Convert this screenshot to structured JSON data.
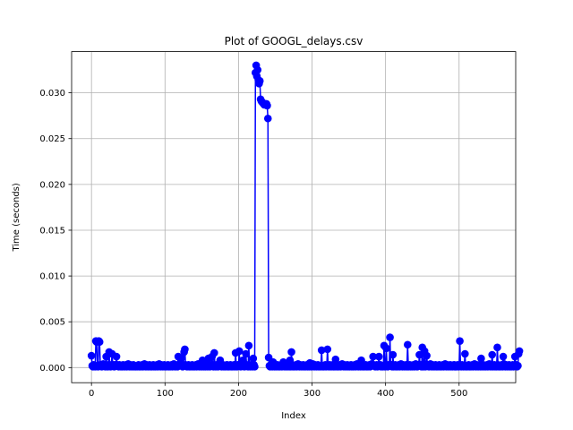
{
  "chart_data": {
    "type": "line",
    "title": "Plot of GOOGL_delays.csv",
    "xlabel": "Index",
    "ylabel": "Time (seconds)",
    "xlim": [
      -27,
      577
    ],
    "ylim": [
      -0.00165,
      0.0345
    ],
    "xticks": [
      0,
      100,
      200,
      300,
      400,
      500
    ],
    "xtick_labels": [
      "0",
      "100",
      "200",
      "300",
      "400",
      "500"
    ],
    "yticks": [
      0.0,
      0.005,
      0.01,
      0.015,
      0.02,
      0.025,
      0.03
    ],
    "ytick_labels": [
      "0.000",
      "0.005",
      "0.010",
      "0.015",
      "0.020",
      "0.025",
      "0.030"
    ],
    "grid": true,
    "series": [
      {
        "color": "#0000ff",
        "marker": "circle",
        "x_start": 0,
        "x_step": 1,
        "values": [
          0.0013,
          0.0002,
          0.0001,
          0.0003,
          0.0002,
          0.0001,
          0.0029,
          0.0028,
          0.0002,
          0.0001,
          0.0029,
          0.0028,
          0.0003,
          0.0002,
          0.0001,
          0.0002,
          0.0004,
          0.0003,
          0.0002,
          0.0001,
          0.0012,
          0.0002,
          0.0001,
          0.0003,
          0.0017,
          0.0002,
          0.0001,
          0.0003,
          0.0015,
          0.0003,
          0.0002,
          0.0001,
          0.0003,
          0.0002,
          0.0012,
          0.0003,
          0.0002,
          0.0001,
          0.0003,
          0.0002,
          0.0001,
          0.0002,
          0.0001,
          0.0003,
          0.0002,
          0.0001,
          0.0002,
          0.0003,
          0.0001,
          0.0002,
          0.0004,
          0.0002,
          0.0001,
          0.0003,
          0.0002,
          0.0001,
          0.0002,
          0.0003,
          0.0001,
          0.0002,
          0.0001,
          0.0002,
          0.0001,
          0.0002,
          0.0003,
          0.0001,
          0.0002,
          0.0001,
          0.0002,
          0.0003,
          0.0001,
          0.0002,
          0.0004,
          0.0002,
          0.0001,
          0.0003,
          0.0002,
          0.0001,
          0.0002,
          0.0003,
          0.0001,
          0.0002,
          0.0001,
          0.0002,
          0.0003,
          0.0001,
          0.0002,
          0.0001,
          0.0002,
          0.0003,
          0.0001,
          0.0002,
          0.0004,
          0.0002,
          0.0001,
          0.0003,
          0.0002,
          0.0001,
          0.0002,
          0.0003,
          0.0001,
          0.0002,
          0.0001,
          0.0002,
          0.0003,
          0.0001,
          0.0002,
          0.0001,
          0.0002,
          0.0003,
          0.0001,
          0.0002,
          0.0004,
          0.0002,
          0.0001,
          0.0003,
          0.0002,
          0.0001,
          0.0012,
          0.0003,
          0.0002,
          0.0004,
          0.001,
          0.0002,
          0.0001,
          0.0003,
          0.0017,
          0.002,
          0.0003,
          0.0002,
          0.0001,
          0.0002,
          0.0003,
          0.0001,
          0.0002,
          0.0001,
          0.0002,
          0.0003,
          0.0001,
          0.0002,
          0.0001,
          0.0002,
          0.0003,
          0.0001,
          0.0002,
          0.0004,
          0.0002,
          0.0001,
          0.0003,
          0.0002,
          0.0001,
          0.0008,
          0.0003,
          0.0001,
          0.0002,
          0.0001,
          0.0002,
          0.0003,
          0.0001,
          0.001,
          0.0002,
          0.0001,
          0.0003,
          0.0002,
          0.0012,
          0.0002,
          0.0001,
          0.0016,
          0.0002,
          0.0001,
          0.0003,
          0.0002,
          0.0001,
          0.0002,
          0.0003,
          0.0008,
          0.0002,
          0.0001,
          0.0002,
          0.0003,
          0.0001,
          0.0002,
          0.0001,
          0.0002,
          0.0003,
          0.0001,
          0.0002,
          0.0001,
          0.0002,
          0.0003,
          0.0001,
          0.0002,
          0.0001,
          0.0002,
          0.0003,
          0.0001,
          0.0016,
          0.0002,
          0.0001,
          0.0003,
          0.0002,
          0.0018,
          0.0002,
          0.0001,
          0.0003,
          0.0002,
          0.0008,
          0.0003,
          0.0001,
          0.0002,
          0.0015,
          0.0003,
          0.0002,
          0.0001,
          0.0024,
          0.0002,
          0.0001,
          0.0003,
          0.0002,
          0.0001,
          0.001,
          0.0003,
          0.0001,
          0.0322,
          0.033,
          0.0318,
          0.0325,
          0.0314,
          0.031,
          0.0313,
          0.0293,
          0.0291,
          0.029,
          0.0289,
          0.0288,
          0.0287,
          0.0288,
          0.0287,
          0.0288,
          0.0286,
          0.0272,
          0.0011,
          0.0002,
          0.0001,
          0.0003,
          0.0002,
          0.0001,
          0.0006,
          0.0003,
          0.0001,
          0.0002,
          0.0001,
          0.0002,
          0.0003,
          0.0001,
          0.0002,
          0.0001,
          0.0002,
          0.0003,
          0.0001,
          0.0002,
          0.0006,
          0.0002,
          0.0001,
          0.0003,
          0.0002,
          0.0001,
          0.0002,
          0.0003,
          0.0001,
          0.0008,
          0.0001,
          0.0017,
          0.0003,
          0.0001,
          0.0002,
          0.0001,
          0.0002,
          0.0003,
          0.0001,
          0.0002,
          0.0004,
          0.0002,
          0.0001,
          0.0003,
          0.0002,
          0.0001,
          0.0002,
          0.0003,
          0.0001,
          0.0002,
          0.0001,
          0.0002,
          0.0003,
          0.0001,
          0.0002,
          0.0001,
          0.0005,
          0.0003,
          0.0001,
          0.0002,
          0.0004,
          0.0002,
          0.0001,
          0.0003,
          0.0002,
          0.0001,
          0.0002,
          0.0003,
          0.0001,
          0.0002,
          0.0001,
          0.0002,
          0.0019,
          0.0001,
          0.0002,
          0.0001,
          0.0002,
          0.0003,
          0.0001,
          0.0002,
          0.002,
          0.0002,
          0.0001,
          0.0003,
          0.0002,
          0.0001,
          0.0002,
          0.0003,
          0.0001,
          0.0002,
          0.0001,
          0.0009,
          0.0003,
          0.0001,
          0.0002,
          0.0001,
          0.0002,
          0.0003,
          0.0001,
          0.0002,
          0.0004,
          0.0002,
          0.0001,
          0.0003,
          0.0002,
          0.0001,
          0.0002,
          0.0003,
          0.0001,
          0.0002,
          0.0001,
          0.0002,
          0.0003,
          0.0001,
          0.0002,
          0.0001,
          0.0002,
          0.0003,
          0.0001,
          0.0002,
          0.0004,
          0.0002,
          0.0001,
          0.0003,
          0.0002,
          0.0001,
          0.0008,
          0.0003,
          0.0001,
          0.0002,
          0.0001,
          0.0002,
          0.0003,
          0.0001,
          0.0002,
          0.0001,
          0.0002,
          0.0003,
          0.0001,
          0.0002,
          0.0004,
          0.0002,
          0.0012,
          0.0003,
          0.0002,
          0.0001,
          0.0002,
          0.0003,
          0.0001,
          0.0002,
          0.0012,
          0.0002,
          0.0003,
          0.0001,
          0.0002,
          0.0001,
          0.0002,
          0.0024,
          0.0001,
          0.0002,
          0.0021,
          0.0002,
          0.0001,
          0.0003,
          0.0002,
          0.0033,
          0.0002,
          0.0003,
          0.0001,
          0.0014,
          0.0001,
          0.0002,
          0.0003,
          0.0001,
          0.0002,
          0.0001,
          0.0002,
          0.0003,
          0.0001,
          0.0002,
          0.0004,
          0.0002,
          0.0001,
          0.0003,
          0.0002,
          0.0001,
          0.0002,
          0.0003,
          0.0001,
          0.0025,
          0.0001,
          0.0002,
          0.0003,
          0.0001,
          0.0002,
          0.0001,
          0.0002,
          0.0003,
          0.0001,
          0.0002,
          0.0004,
          0.0002,
          0.0001,
          0.0003,
          0.0002,
          0.0014,
          0.0002,
          0.0003,
          0.0001,
          0.0022,
          0.0001,
          0.0002,
          0.0018,
          0.0001,
          0.0002,
          0.0013,
          0.0002,
          0.0003,
          0.0001,
          0.0002,
          0.0004,
          0.0002,
          0.0001,
          0.0003,
          0.0002,
          0.0001,
          0.0002,
          0.0003,
          0.0001,
          0.0002,
          0.0001,
          0.0002,
          0.0003,
          0.0001,
          0.0002,
          0.0001,
          0.0002,
          0.0003,
          0.0001,
          0.0002,
          0.0004,
          0.0002,
          0.0001,
          0.0003,
          0.0002,
          0.0001,
          0.0002,
          0.0003,
          0.0001,
          0.0002,
          0.0001,
          0.0002,
          0.0003,
          0.0001,
          0.0002,
          0.0001,
          0.0002,
          0.0003,
          0.0001,
          0.0002,
          0.0029,
          0.0002,
          0.0001,
          0.0003,
          0.0002,
          0.0001,
          0.0002,
          0.0015,
          0.0001,
          0.0002,
          0.0001,
          0.0002,
          0.0003,
          0.0001,
          0.0002,
          0.0001,
          0.0002,
          0.0003,
          0.0001,
          0.0002,
          0.0004,
          0.0002,
          0.0001,
          0.0003,
          0.0002,
          0.0001,
          0.0002,
          0.0003,
          0.0001,
          0.001,
          0.0001,
          0.0002,
          0.0003,
          0.0001,
          0.0002,
          0.0001,
          0.0002,
          0.0003,
          0.0001,
          0.0002,
          0.0004,
          0.0002,
          0.0001,
          0.0003,
          0.0014,
          0.0001,
          0.0002,
          0.0003,
          0.0001,
          0.0002,
          0.0001,
          0.0022,
          0.0003,
          0.0001,
          0.0002,
          0.0001,
          0.0002,
          0.0003,
          0.0001,
          0.0012,
          0.0004,
          0.0002,
          0.0001,
          0.0003,
          0.0002,
          0.0001,
          0.0002,
          0.0003,
          0.0001,
          0.0002,
          0.0001,
          0.0002,
          0.0003,
          0.0001,
          0.0002,
          0.0012,
          0.0002,
          0.0003,
          0.0001,
          0.0002,
          0.0015,
          0.0018
        ]
      }
    ]
  }
}
